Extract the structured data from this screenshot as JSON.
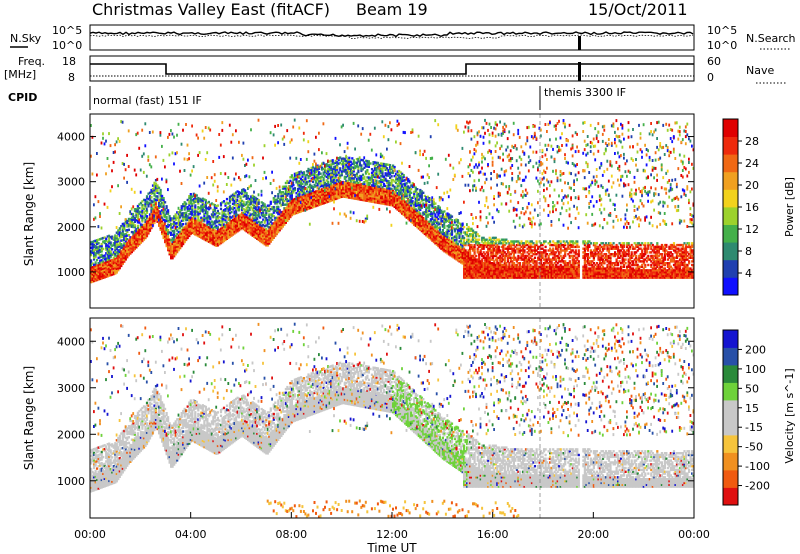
{
  "header": {
    "title": "Christmas Valley East (fitACF)",
    "beam": "Beam 19",
    "date": "15/Oct/2011"
  },
  "status_panels": {
    "nsky": {
      "label": "N.Sky",
      "right_label": "N.Search",
      "left_ticks": [
        "10^5",
        "10^0"
      ],
      "right_ticks": [
        "10^5",
        "10^0"
      ]
    },
    "freq": {
      "label_line1": "Freq.",
      "label_line2": "[MHz]",
      "right_label": "Nave",
      "left_ticks": [
        "18",
        "8"
      ],
      "right_ticks": [
        "60",
        "0"
      ]
    },
    "cpid": {
      "label": "CPID",
      "segments": [
        "normal (fast) 151 IF",
        "themis 3300 IF"
      ]
    }
  },
  "chart_data": [
    {
      "type": "heatmap",
      "name": "power",
      "ylabel": "Slant Range [km]",
      "ylim": [
        200,
        4500
      ],
      "yticks": [
        1000,
        2000,
        3000,
        4000
      ],
      "colorbar_label": "Power [dB]",
      "colorbar_ticks": [
        "4",
        "8",
        "12",
        "16",
        "20",
        "24",
        "28"
      ],
      "colorbar_colors": [
        "#1010ff",
        "#2040b0",
        "#2e8a70",
        "#44b04a",
        "#9cd22c",
        "#f2d21c",
        "#f0a020",
        "#f06814",
        "#ee2a0c",
        "#e00000"
      ],
      "echo_band": {
        "time_hours": [
          0.0,
          1.0,
          1.5,
          2.2,
          2.6,
          3.2,
          4.0,
          5.0,
          6.0,
          7.0,
          8.0,
          9.0,
          10.0,
          11.0,
          12.0,
          13.0,
          14.0,
          14.8,
          15.5,
          17.0,
          19.0,
          21.0,
          24.0
        ],
        "range_km": [
          1300,
          1500,
          1900,
          2300,
          2700,
          1800,
          2400,
          2100,
          2500,
          2100,
          2800,
          3000,
          3200,
          3100,
          3000,
          2500,
          2000,
          1700,
          1400,
          1300,
          1300,
          1250,
          1250
        ]
      }
    },
    {
      "type": "heatmap",
      "name": "velocity",
      "ylabel": "Slant Range [km]",
      "ylim": [
        200,
        4500
      ],
      "yticks": [
        1000,
        2000,
        3000,
        4000
      ],
      "colorbar_label": "Velocity [m s^-1]",
      "colorbar_ticks": [
        "200",
        "100",
        "50",
        "15",
        "-15",
        "-50",
        "-100",
        "-200"
      ],
      "colorbar_colors": [
        "#1414d0",
        "#2850a8",
        "#2a8a3a",
        "#6ed23a",
        "#c8c8c8",
        "#c8c8c8",
        "#f6c43c",
        "#f09020",
        "#f05a10",
        "#e01010"
      ],
      "xlabel": "Time UT",
      "xticks": [
        "00:00",
        "04:00",
        "08:00",
        "12:00",
        "16:00",
        "20:00",
        "00:00"
      ],
      "xlim_hours": [
        0,
        24
      ]
    }
  ]
}
